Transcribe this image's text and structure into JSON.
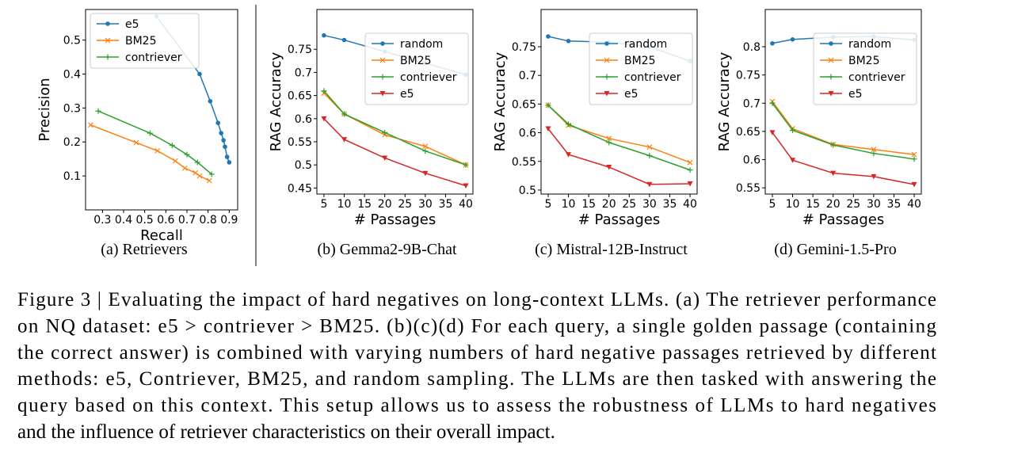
{
  "chart_data": [
    {
      "type": "line",
      "caption": "(a) Retrievers",
      "xlabel": "Recall",
      "ylabel": "Precision",
      "xlim": [
        0.22,
        0.94
      ],
      "ylim": [
        0.0,
        0.59
      ],
      "xticks": [
        0.3,
        0.4,
        0.5,
        0.6,
        0.7,
        0.8,
        0.9
      ],
      "yticks": [
        0.1,
        0.2,
        0.3,
        0.4,
        0.5
      ],
      "legend": "upper left",
      "series": [
        {
          "name": "e5",
          "color": "#1f77b4",
          "marker": "o",
          "x": [
            0.555,
            0.76,
            0.81,
            0.847,
            0.862,
            0.873,
            0.88,
            0.89,
            0.9
          ],
          "values": [
            0.57,
            0.4,
            0.32,
            0.256,
            0.226,
            0.205,
            0.186,
            0.156,
            0.14
          ]
        },
        {
          "name": "BM25",
          "color": "#ff7f0e",
          "marker": "x",
          "x": [
            0.244,
            0.46,
            0.56,
            0.645,
            0.69,
            0.74,
            0.76,
            0.806
          ],
          "values": [
            0.25,
            0.198,
            0.174,
            0.144,
            0.123,
            0.109,
            0.1,
            0.086
          ]
        },
        {
          "name": "contriever",
          "color": "#2ca02c",
          "marker": "+",
          "x": [
            0.28,
            0.525,
            0.63,
            0.7,
            0.75,
            0.817
          ],
          "values": [
            0.291,
            0.226,
            0.19,
            0.163,
            0.14,
            0.105
          ]
        }
      ]
    },
    {
      "type": "line",
      "caption": "(b) Gemma2-9B-Chat",
      "xlabel": "# Passages",
      "ylabel": "RAG Accuracy",
      "xlim": [
        3.25,
        41.75
      ],
      "ylim": [
        0.437,
        0.836
      ],
      "xticks": [
        5,
        10,
        15,
        20,
        25,
        30,
        35,
        40
      ],
      "yticks": [
        0.45,
        0.5,
        0.55,
        0.6,
        0.65,
        0.7,
        0.75
      ],
      "legend": "upper right",
      "x": [
        5,
        10,
        20,
        30,
        40
      ],
      "series": [
        {
          "name": "random",
          "color": "#1f77b4",
          "marker": "o",
          "values": [
            0.78,
            0.77,
            0.745,
            0.72,
            0.695
          ]
        },
        {
          "name": "BM25",
          "color": "#ff7f0e",
          "marker": "x",
          "values": [
            0.655,
            0.61,
            0.565,
            0.54,
            0.5
          ]
        },
        {
          "name": "contriever",
          "color": "#2ca02c",
          "marker": "+",
          "values": [
            0.66,
            0.61,
            0.57,
            0.53,
            0.5
          ]
        },
        {
          "name": "e5",
          "color": "#d62728",
          "marker": "v",
          "values": [
            0.6,
            0.555,
            0.515,
            0.482,
            0.455
          ]
        }
      ]
    },
    {
      "type": "line",
      "caption": "(c) Mistral-12B-Instruct",
      "xlabel": "# Passages",
      "ylabel": "RAG Accuracy",
      "xlim": [
        3.25,
        41.75
      ],
      "ylim": [
        0.493,
        0.815
      ],
      "xticks": [
        5,
        10,
        15,
        20,
        25,
        30,
        35,
        40
      ],
      "yticks": [
        0.5,
        0.55,
        0.6,
        0.65,
        0.7,
        0.75
      ],
      "legend": "upper right",
      "x": [
        5,
        10,
        20,
        30,
        40
      ],
      "series": [
        {
          "name": "random",
          "color": "#1f77b4",
          "marker": "o",
          "values": [
            0.768,
            0.76,
            0.758,
            0.75,
            0.725
          ]
        },
        {
          "name": "BM25",
          "color": "#ff7f0e",
          "marker": "x",
          "values": [
            0.648,
            0.613,
            0.59,
            0.575,
            0.548
          ]
        },
        {
          "name": "contriever",
          "color": "#2ca02c",
          "marker": "+",
          "values": [
            0.648,
            0.615,
            0.583,
            0.56,
            0.535
          ]
        },
        {
          "name": "e5",
          "color": "#d62728",
          "marker": "v",
          "values": [
            0.607,
            0.562,
            0.54,
            0.51,
            0.511
          ]
        }
      ]
    },
    {
      "type": "line",
      "caption": "(d) Gemini-1.5-Pro",
      "xlabel": "# Passages",
      "ylabel": "RAG Accuracy",
      "xlim": [
        3.25,
        41.75
      ],
      "ylim": [
        0.539,
        0.866
      ],
      "xticks": [
        5,
        10,
        15,
        20,
        25,
        30,
        35,
        40
      ],
      "yticks": [
        0.55,
        0.6,
        0.65,
        0.7,
        0.75,
        0.8
      ],
      "legend": "upper right",
      "x": [
        5,
        10,
        20,
        30,
        40
      ],
      "series": [
        {
          "name": "random",
          "color": "#1f77b4",
          "marker": "o",
          "values": [
            0.806,
            0.813,
            0.817,
            0.818,
            0.812
          ]
        },
        {
          "name": "BM25",
          "color": "#ff7f0e",
          "marker": "x",
          "values": [
            0.703,
            0.655,
            0.627,
            0.618,
            0.609
          ]
        },
        {
          "name": "contriever",
          "color": "#2ca02c",
          "marker": "+",
          "values": [
            0.7,
            0.652,
            0.626,
            0.611,
            0.601
          ]
        },
        {
          "name": "e5",
          "color": "#d62728",
          "marker": "v",
          "values": [
            0.648,
            0.599,
            0.576,
            0.57,
            0.556
          ]
        }
      ]
    }
  ],
  "caption": {
    "lines": [
      "Figure 3 | Evaluating the impact of hard negatives on long-context LLMs.  (a) The retriever performance",
      "on NQ dataset: e5 > contriever > BM25.  (b)(c)(d) For each query, a single golden passage (containing",
      "the correct answer) is combined with varying numbers of hard negative passages retrieved by different",
      "methods: e5, Contriever, BM25, and random sampling. The LLMs are then tasked with answering the",
      "query based on this context. This setup allows us to assess the robustness of LLMs to hard negatives",
      "and the influence of retriever characteristics on their overall impact."
    ]
  }
}
